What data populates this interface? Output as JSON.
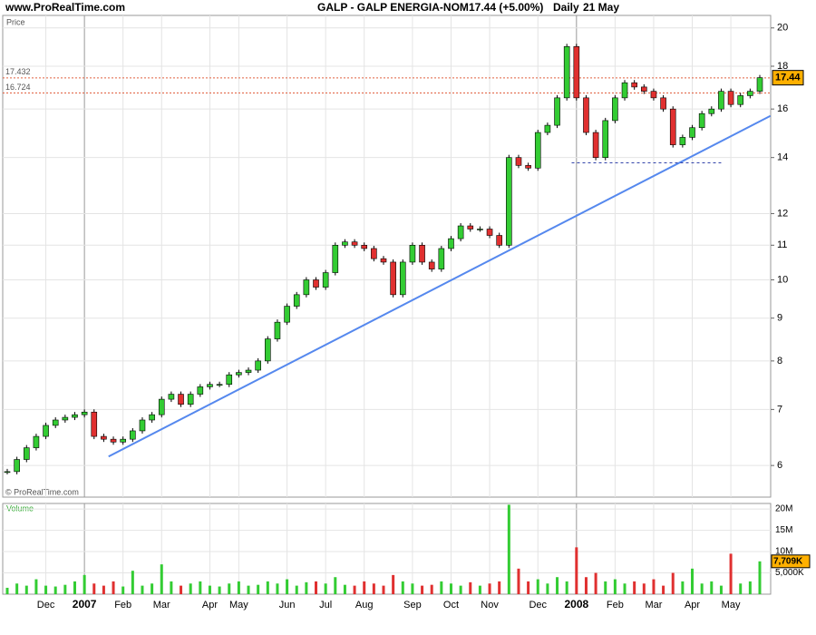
{
  "site": "www.ProRealTime.com",
  "chart_data": [
    {
      "type": "candlestick",
      "title": "GALP - GALP ENERGIA-NOM",
      "subtitle": "17.44 (+5.00%)",
      "period": "Daily",
      "date": "21 May",
      "ylabel": "Price",
      "watermark": "© ProRealTime.com",
      "categories": [
        null,
        null,
        null,
        null,
        "Dec",
        null,
        null,
        null,
        "2007",
        null,
        null,
        null,
        "Feb",
        null,
        null,
        null,
        "Mar",
        null,
        null,
        null,
        null,
        "Apr",
        null,
        null,
        "May",
        null,
        null,
        null,
        null,
        "Jun",
        null,
        null,
        null,
        "Jul",
        null,
        null,
        null,
        "Aug",
        null,
        null,
        null,
        null,
        "Sep",
        null,
        null,
        null,
        "Oct",
        null,
        null,
        null,
        "Nov",
        null,
        null,
        null,
        null,
        "Dec",
        null,
        null,
        null,
        "2008",
        null,
        null,
        null,
        "Feb",
        null,
        null,
        null,
        "Mar",
        null,
        null,
        null,
        "Apr",
        null,
        null,
        null,
        "May",
        null,
        null,
        null
      ],
      "series": [
        {
          "values": [
            5.9,
            6.1,
            6.3,
            6.5,
            6.7,
            6.8,
            6.85,
            6.9,
            6.95,
            6.5,
            6.45,
            6.4,
            6.45,
            6.6,
            6.8,
            6.9,
            7.2,
            7.3,
            7.1,
            7.3,
            7.45,
            7.5,
            7.5,
            7.7,
            7.75,
            7.8,
            8.0,
            8.5,
            8.9,
            9.3,
            9.6,
            10.0,
            9.8,
            10.2,
            11.0,
            11.1,
            11.0,
            10.9,
            10.6,
            10.5,
            9.6,
            10.5,
            11.0,
            10.5,
            10.3,
            10.9,
            11.2,
            11.6,
            11.5,
            11.5,
            11.3,
            11.0,
            14.0,
            13.7,
            13.6,
            15.0,
            15.3,
            16.5,
            19.0,
            16.5,
            15.0,
            14.0,
            15.5,
            16.5,
            17.2,
            17.0,
            16.8,
            16.5,
            16.0,
            14.5,
            14.8,
            15.2,
            15.8,
            16.0,
            16.8,
            16.2,
            16.6,
            16.8,
            17.44
          ]
        }
      ],
      "up_color": "#33cc33",
      "down_color": "#e03030",
      "log_scale": true,
      "grid": true,
      "ylim": [
        5.5,
        20.7
      ],
      "yticks": [
        6,
        7,
        8,
        9,
        10,
        11,
        12,
        14,
        16,
        18,
        20
      ],
      "reference_lines": [
        17.432,
        16.724
      ],
      "reference_color": "#e06040",
      "trendline": {
        "x": [
          10.5,
          79.1
        ],
        "y": [
          6.15,
          15.7
        ],
        "color": "#5588ee"
      },
      "support_line": {
        "x": [
          58.5,
          74
        ],
        "y": [
          13.8,
          13.8
        ],
        "color": "#3344aa"
      }
    },
    {
      "type": "bar",
      "ylabel": "Volume",
      "values": [
        1.5,
        2.5,
        2,
        3.5,
        2,
        1.8,
        2.2,
        3,
        4.5,
        2.5,
        2,
        3,
        1.8,
        5.5,
        2,
        2.5,
        7,
        3,
        2,
        2.5,
        3,
        2,
        1.8,
        2.5,
        3,
        2,
        2.2,
        3,
        2.5,
        3.5,
        2,
        2.8,
        3,
        2.5,
        4,
        2.2,
        2,
        3,
        2.5,
        2,
        4.5,
        3,
        2.5,
        2,
        2.2,
        3,
        2.5,
        2,
        2.8,
        2,
        2.5,
        3,
        21,
        6,
        3,
        3.5,
        2.5,
        4,
        3,
        11,
        4,
        5,
        3,
        3.5,
        2.5,
        3,
        2.5,
        3.5,
        2,
        5,
        3,
        6,
        2.5,
        3,
        2,
        9.5,
        2.5,
        3,
        7.709
      ],
      "value_labels": [
        null,
        null,
        null,
        null,
        null,
        null,
        null,
        null,
        null,
        null,
        null,
        null,
        null,
        null,
        null,
        null,
        null,
        null,
        null,
        null,
        null,
        null,
        null,
        null,
        null,
        null,
        null,
        null,
        null,
        null,
        null,
        null,
        null,
        null,
        null,
        null,
        null,
        null,
        null,
        null,
        null,
        null,
        null,
        null,
        null,
        null,
        null,
        null,
        null,
        null,
        null,
        null,
        null,
        null,
        null,
        null,
        null,
        null,
        null,
        null,
        null,
        null,
        null,
        null,
        null,
        null,
        null,
        null,
        null,
        null,
        null,
        null,
        null,
        null,
        null,
        null,
        null,
        null,
        "7,709K"
      ],
      "ylim": [
        0,
        21.3
      ],
      "yticks": [
        {
          "value": 5,
          "label": "5,000K"
        },
        {
          "value": 10,
          "label": "10M"
        },
        {
          "value": 15,
          "label": "15M"
        },
        {
          "value": 20,
          "label": "20M"
        }
      ],
      "grid": true
    }
  ]
}
